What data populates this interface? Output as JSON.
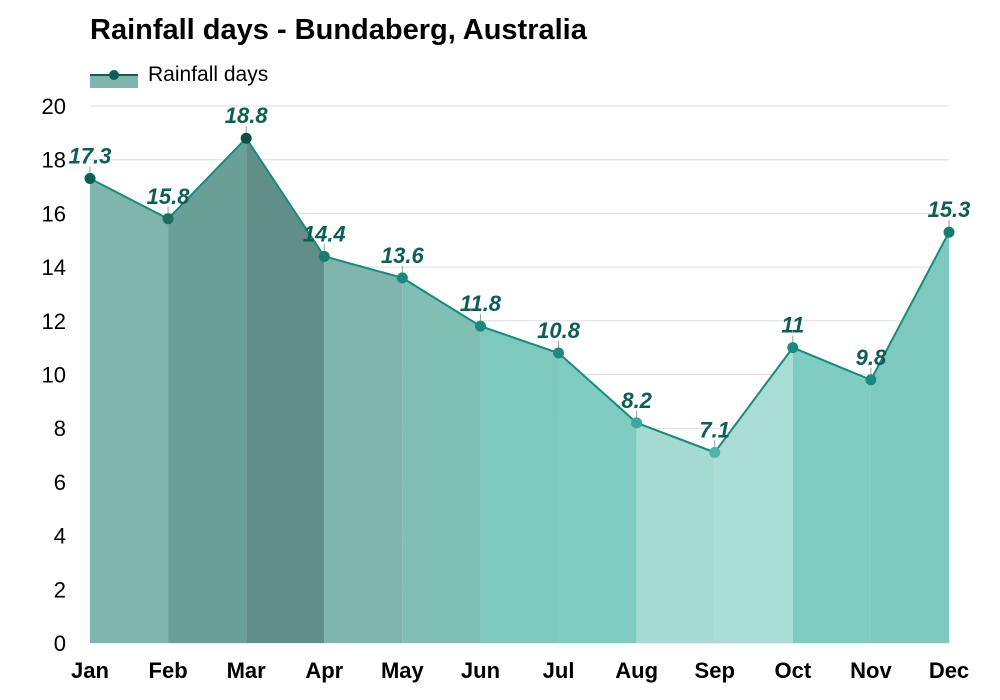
{
  "chart_data": {
    "type": "area",
    "title": "Rainfall days - Bundaberg, Australia",
    "legend": {
      "position": "top-left",
      "entries": [
        "Rainfall days"
      ]
    },
    "categories": [
      "Jan",
      "Feb",
      "Mar",
      "Apr",
      "May",
      "Jun",
      "Jul",
      "Aug",
      "Sep",
      "Oct",
      "Nov",
      "Dec"
    ],
    "series": [
      {
        "name": "Rainfall days",
        "values": [
          17.3,
          15.8,
          18.8,
          14.4,
          13.6,
          11.8,
          10.8,
          8.2,
          7.1,
          11,
          9.8,
          15.3
        ]
      }
    ],
    "data_labels": [
      "17.3",
      "15.8",
      "18.8",
      "14.4",
      "13.6",
      "11.8",
      "10.8",
      "8.2",
      "7.1",
      "11",
      "9.8",
      "15.3"
    ],
    "ylim": [
      0,
      20
    ],
    "yticks": [
      0,
      2,
      4,
      6,
      8,
      10,
      12,
      14,
      16,
      18,
      20
    ],
    "grid": true,
    "colors": {
      "line": "#1a8a7e",
      "label": "#0d5e55",
      "month_fills": [
        "#7fb5ab",
        "#6a9f96",
        "#5f8f87",
        "#7fb5ab",
        "#7fbfb4",
        "#7ec9be",
        "#7fcdc2",
        "#a5dad3",
        "#a8dcd4",
        "#7fcdc2",
        "#7ec9be",
        "#7fb5ab"
      ],
      "point_colors": [
        "#0d5e55",
        "#1a6e64",
        "#0d4e47",
        "#1a7a70",
        "#1a8a7e",
        "#1a8a7e",
        "#1a8a7e",
        "#3aaa9e",
        "#4fb5a9",
        "#1a8a7e",
        "#1a8a7e",
        "#1a7a70"
      ]
    }
  }
}
